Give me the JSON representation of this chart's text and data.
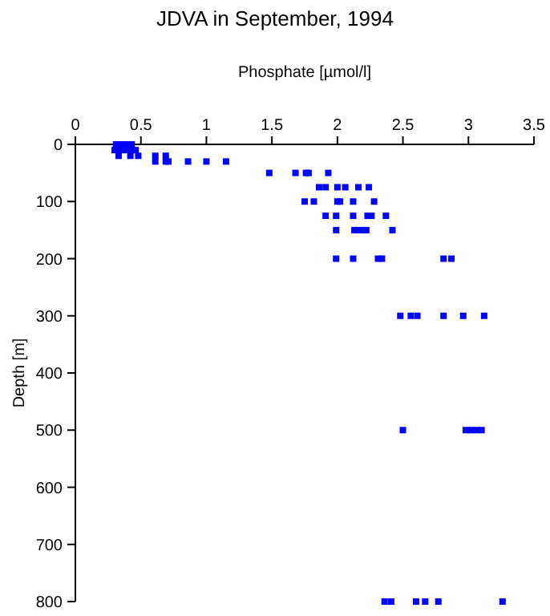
{
  "chart_data": {
    "type": "scatter",
    "title": "JDVA in September, 1994",
    "xlabel": "Phosphate [µmol/l]",
    "ylabel": "Depth [m]",
    "xlim": [
      0,
      3.5
    ],
    "xticks": [
      0,
      0.5,
      1,
      1.5,
      2,
      2.5,
      3,
      3.5
    ],
    "ylim": [
      800,
      0
    ],
    "yticks": [
      0,
      100,
      200,
      300,
      400,
      500,
      600,
      700,
      800
    ],
    "marker": "square",
    "series": [
      {
        "color": "#0000ff",
        "x": [
          0.31,
          0.34,
          0.37,
          0.4,
          0.43,
          0.3,
          0.33,
          0.36,
          0.39,
          0.43,
          0.46,
          0.33,
          0.42,
          0.48,
          0.61,
          0.69,
          0.61,
          0.69,
          0.71,
          0.86,
          1.0,
          1.15,
          1.48,
          1.68,
          1.76,
          1.78,
          1.93,
          1.86,
          1.91,
          2.0,
          2.06,
          2.16,
          2.24,
          1.75,
          1.82,
          2.0,
          2.02,
          2.12,
          2.28,
          1.91,
          1.99,
          2.12,
          2.23,
          2.26,
          2.37,
          1.99,
          2.13,
          2.16,
          2.2,
          2.22,
          2.42,
          1.99,
          2.12,
          2.31,
          2.34,
          2.81,
          2.87,
          2.48,
          2.56,
          2.61,
          2.81,
          2.96,
          3.12,
          2.5,
          2.98,
          3.02,
          3.06,
          3.1,
          2.36,
          2.41,
          2.6,
          2.67,
          2.77,
          3.26
        ],
        "values": [
          0,
          0,
          0,
          0,
          0,
          10,
          10,
          10,
          10,
          10,
          10,
          20,
          20,
          20,
          20,
          20,
          30,
          30,
          30,
          30,
          30,
          30,
          50,
          50,
          50,
          50,
          50,
          75,
          75,
          75,
          75,
          75,
          75,
          100,
          100,
          100,
          100,
          100,
          100,
          125,
          125,
          125,
          125,
          125,
          125,
          150,
          150,
          150,
          150,
          150,
          150,
          200,
          200,
          200,
          200,
          200,
          200,
          300,
          300,
          300,
          300,
          300,
          300,
          500,
          500,
          500,
          500,
          500,
          800,
          800,
          800,
          800,
          800,
          800
        ]
      }
    ]
  }
}
